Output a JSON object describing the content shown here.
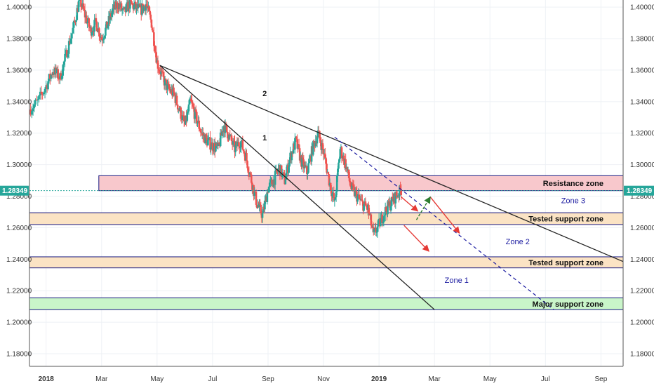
{
  "chart_data": {
    "type": "candlestick",
    "instrument_hint": "",
    "y_ticks": [
      "1.18000",
      "1.20000",
      "1.22000",
      "1.24000",
      "1.26000",
      "1.28000",
      "1.30000",
      "1.32000",
      "1.34000",
      "1.36000",
      "1.38000",
      "1.40000"
    ],
    "ylim": [
      1.172,
      1.4045
    ],
    "x_ticks": [
      {
        "label": "2018",
        "month": 0
      },
      {
        "label": "Mar",
        "month": 2
      },
      {
        "label": "May",
        "month": 4
      },
      {
        "label": "Jul",
        "month": 6
      },
      {
        "label": "Sep",
        "month": 8
      },
      {
        "label": "Nov",
        "month": 10
      },
      {
        "label": "2019",
        "month": 12
      },
      {
        "label": "Mar",
        "month": 14
      },
      {
        "label": "May",
        "month": 16
      },
      {
        "label": "Jul",
        "month": 18
      },
      {
        "label": "Sep",
        "month": 20
      }
    ],
    "xlim": [
      -0.6,
      20.8
    ],
    "current_price": "1.28349",
    "current_price_value": 1.28349,
    "colors": {
      "up": "#26a69a",
      "down": "#ef5350",
      "accent": "#26a69a",
      "guide": "#1a1aa0",
      "arrow_red": "#e53935",
      "arrow_green": "#2e7d32"
    },
    "path_points": [
      [
        -0.6,
        1.335
      ],
      [
        -0.3,
        1.34
      ],
      [
        0.0,
        1.35
      ],
      [
        0.25,
        1.36
      ],
      [
        0.5,
        1.355
      ],
      [
        0.75,
        1.372
      ],
      [
        1.0,
        1.388
      ],
      [
        1.2,
        1.405
      ],
      [
        1.4,
        1.395
      ],
      [
        1.6,
        1.385
      ],
      [
        1.8,
        1.39
      ],
      [
        2.0,
        1.38
      ],
      [
        2.2,
        1.388
      ],
      [
        2.4,
        1.398
      ],
      [
        2.6,
        1.402
      ],
      [
        2.8,
        1.396
      ],
      [
        3.0,
        1.402
      ],
      [
        3.2,
        1.4
      ],
      [
        3.4,
        1.398
      ],
      [
        3.6,
        1.402
      ],
      [
        3.8,
        1.39
      ],
      [
        4.0,
        1.365
      ],
      [
        4.2,
        1.355
      ],
      [
        4.4,
        1.348
      ],
      [
        4.6,
        1.345
      ],
      [
        4.8,
        1.335
      ],
      [
        5.0,
        1.325
      ],
      [
        5.2,
        1.34
      ],
      [
        5.4,
        1.33
      ],
      [
        5.6,
        1.32
      ],
      [
        5.8,
        1.315
      ],
      [
        6.0,
        1.312
      ],
      [
        6.2,
        1.31
      ],
      [
        6.4,
        1.325
      ],
      [
        6.6,
        1.318
      ],
      [
        6.8,
        1.31
      ],
      [
        7.0,
        1.315
      ],
      [
        7.2,
        1.305
      ],
      [
        7.4,
        1.29
      ],
      [
        7.6,
        1.275
      ],
      [
        7.8,
        1.268
      ],
      [
        8.0,
        1.285
      ],
      [
        8.2,
        1.29
      ],
      [
        8.4,
        1.298
      ],
      [
        8.6,
        1.29
      ],
      [
        8.8,
        1.305
      ],
      [
        9.0,
        1.315
      ],
      [
        9.2,
        1.302
      ],
      [
        9.4,
        1.295
      ],
      [
        9.6,
        1.31
      ],
      [
        9.8,
        1.32
      ],
      [
        10.0,
        1.308
      ],
      [
        10.2,
        1.29
      ],
      [
        10.4,
        1.275
      ],
      [
        10.6,
        1.31
      ],
      [
        10.8,
        1.3
      ],
      [
        11.0,
        1.285
      ],
      [
        11.2,
        1.28
      ],
      [
        11.4,
        1.275
      ],
      [
        11.6,
        1.272
      ],
      [
        11.8,
        1.255
      ],
      [
        12.0,
        1.262
      ],
      [
        12.2,
        1.27
      ],
      [
        12.4,
        1.275
      ],
      [
        12.6,
        1.28
      ],
      [
        12.8,
        1.284
      ]
    ],
    "zones": [
      {
        "name": "Resistance zone",
        "y_from": 1.2835,
        "y_to": 1.293,
        "fill": "#f8c8cc",
        "x_from": 1.9
      },
      {
        "name": "Tested support zone",
        "y_from": 1.262,
        "y_to": 1.2695,
        "fill": "#fbe3c4",
        "x_from": -0.6
      },
      {
        "name": "Tested support zone",
        "y_from": 1.2345,
        "y_to": 1.2415,
        "fill": "#fbe3c4",
        "x_from": -0.6
      },
      {
        "name": "Major support zone",
        "y_from": 1.208,
        "y_to": 1.2155,
        "fill": "#c9f5c9",
        "x_from": -0.6
      }
    ],
    "trendlines": [
      {
        "label": "1",
        "from": [
          4.1,
          1.363
        ],
        "to": [
          14.0,
          1.208
        ],
        "style": "solid"
      },
      {
        "label": "2",
        "from": [
          4.1,
          1.363
        ],
        "to": [
          20.8,
          1.2385
        ],
        "style": "solid"
      },
      {
        "label": "",
        "from": [
          10.4,
          1.3175
        ],
        "to": [
          18.3,
          1.208
        ],
        "style": "dashed"
      }
    ],
    "trendline_labels": [
      {
        "text": "2",
        "at": [
          7.8,
          1.3435
        ]
      },
      {
        "text": "1",
        "at": [
          7.8,
          1.3155
        ]
      }
    ],
    "annotations": [
      {
        "text": "Zone 3",
        "at": [
          19.0,
          1.2755
        ]
      },
      {
        "text": "Zone 2",
        "at": [
          17.0,
          1.2495
        ]
      },
      {
        "text": "Zone 1",
        "at": [
          14.8,
          1.225
        ]
      }
    ],
    "arrows": [
      {
        "from": [
          12.8,
          1.2795
        ],
        "to": [
          13.4,
          1.2705
        ],
        "color": "red"
      },
      {
        "from": [
          12.9,
          1.2615
        ],
        "to": [
          13.8,
          1.245
        ],
        "color": "red"
      },
      {
        "from": [
          13.85,
          1.2795
        ],
        "to": [
          14.9,
          1.2565
        ],
        "color": "red"
      },
      {
        "from": [
          13.35,
          1.265
        ],
        "to": [
          13.85,
          1.2795
        ],
        "color": "green"
      }
    ]
  }
}
